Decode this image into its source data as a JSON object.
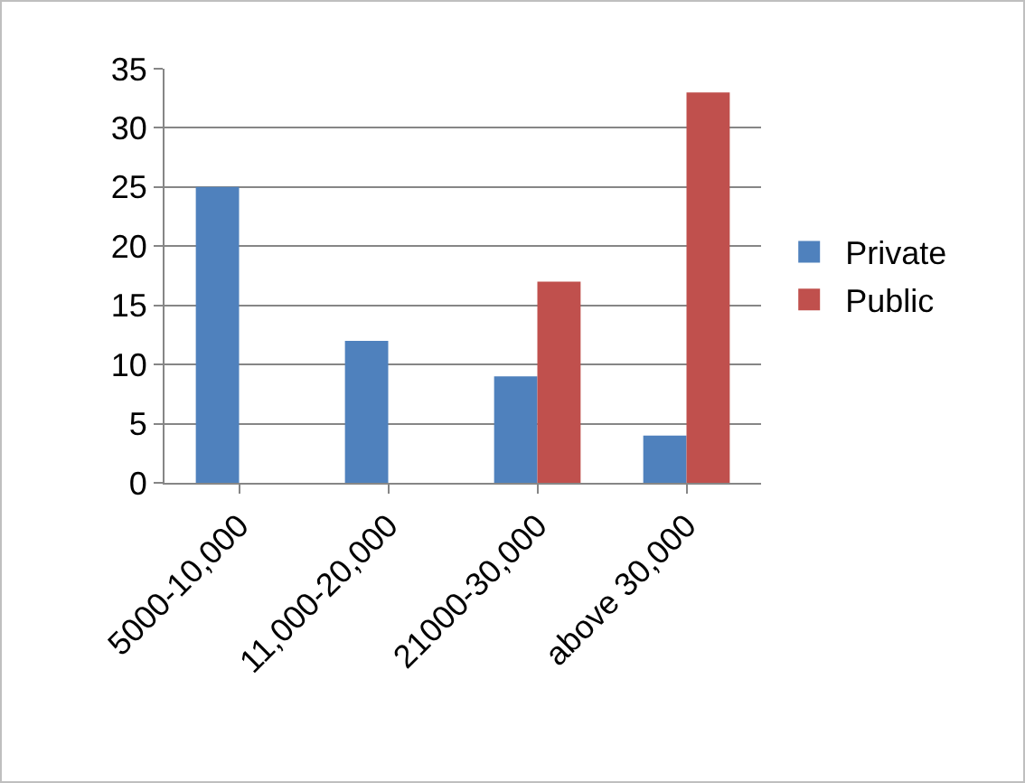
{
  "chart_data": {
    "type": "bar",
    "categories": [
      "5000-10,000",
      "11,000-20,000",
      "21000-30,000",
      "above 30,000"
    ],
    "series": [
      {
        "name": "Private",
        "color": "#4f81bd",
        "values": [
          25,
          12,
          9,
          4
        ]
      },
      {
        "name": "Public",
        "color": "#c0504d",
        "values": [
          0,
          0,
          17,
          33
        ]
      }
    ],
    "ylim": [
      0,
      35
    ],
    "yticks": [
      0,
      5,
      10,
      15,
      20,
      25,
      30,
      35
    ],
    "grid": "y",
    "legend": "right"
  }
}
